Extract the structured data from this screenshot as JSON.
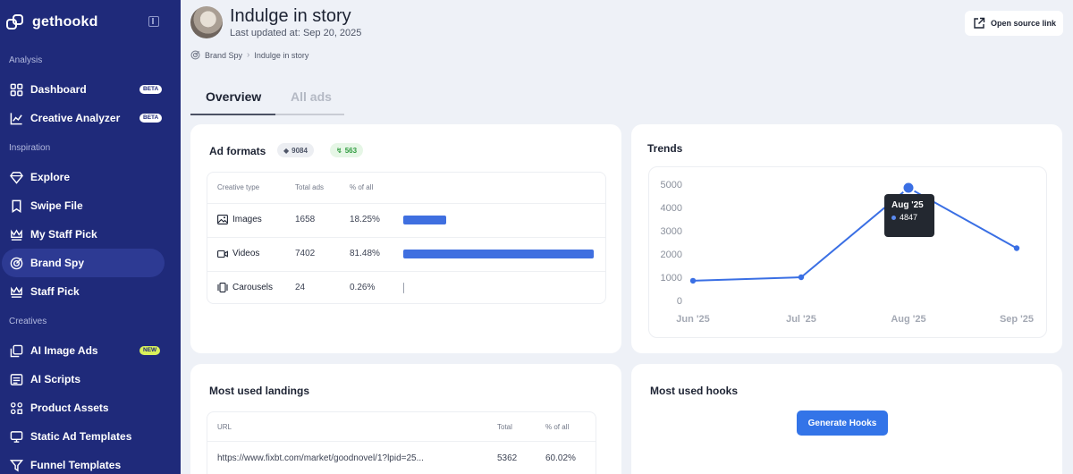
{
  "brand": {
    "name": "gethookd"
  },
  "sidebar": {
    "sections": [
      "Analysis",
      "Inspiration",
      "Creatives"
    ],
    "items": [
      {
        "label": "Dashboard",
        "icon": "grid-icon",
        "badge": "BETA"
      },
      {
        "label": "Creative Analyzer",
        "icon": "chart-line-icon",
        "badge": "BETA"
      },
      {
        "label": "Explore",
        "icon": "diamond-icon"
      },
      {
        "label": "Swipe File",
        "icon": "bookmark-icon"
      },
      {
        "label": "My Staff Pick",
        "icon": "crown-icon"
      },
      {
        "label": "Brand Spy",
        "icon": "radar-icon",
        "active": true
      },
      {
        "label": "Staff Pick",
        "icon": "crown-icon"
      },
      {
        "label": "AI Image Ads",
        "icon": "copy-icon",
        "badge": "NEW"
      },
      {
        "label": "AI Scripts",
        "icon": "list-icon"
      },
      {
        "label": "Product Assets",
        "icon": "assets-icon"
      },
      {
        "label": "Static Ad Templates",
        "icon": "template-icon"
      },
      {
        "label": "Funnel Templates",
        "icon": "funnel-icon"
      }
    ]
  },
  "header": {
    "title": "Indulge in story",
    "updated": "Last updated at: Sep 20, 2025",
    "open_link": "Open source link"
  },
  "breadcrumb": {
    "root": "Brand Spy",
    "current": "Indulge in story"
  },
  "tabs": [
    {
      "label": "Overview",
      "active": true
    },
    {
      "label": "All ads",
      "active": false
    }
  ],
  "ad_formats": {
    "title": "Ad formats",
    "total_pill": "9084",
    "active_pill": "563",
    "columns": [
      "Creative type",
      "Total ads",
      "% of all"
    ],
    "rows": [
      {
        "type": "Images",
        "icon": "image-icon",
        "total": "1658",
        "pct": "18.25%",
        "fraction": 0.1825
      },
      {
        "type": "Videos",
        "icon": "video-icon",
        "total": "7402",
        "pct": "81.48%",
        "fraction": 0.8148
      },
      {
        "type": "Carousels",
        "icon": "carousel-icon",
        "total": "24",
        "pct": "0.26%",
        "fraction": 0.0026
      }
    ],
    "bar_color": "#3f6fe0"
  },
  "trends": {
    "title": "Trends",
    "tooltip": {
      "label": "Aug '25",
      "value": "4847"
    }
  },
  "chart_data": {
    "type": "line",
    "title": "Trends",
    "categories": [
      "Jun '25",
      "Jul '25",
      "Aug '25",
      "Sep '25"
    ],
    "series": [
      {
        "values": [
          850,
          1000,
          4847,
          2250
        ]
      }
    ],
    "yticks": [
      0,
      1000,
      2000,
      3000,
      4000,
      5000
    ],
    "ylim": [
      0,
      5000
    ],
    "grid": false,
    "color": "#3a6fe4"
  },
  "landings": {
    "title": "Most used landings",
    "columns": [
      "URL",
      "Total",
      "% of all"
    ],
    "rows": [
      {
        "url": "https://www.fixbt.com/market/goodnovel/1?lpid=25...",
        "total": "5362",
        "pct": "60.02%"
      }
    ]
  },
  "hooks": {
    "title": "Most used hooks",
    "button": "Generate Hooks"
  },
  "colors": {
    "sidebar_bg": "#1f2a7a",
    "accent": "#3374e8"
  }
}
